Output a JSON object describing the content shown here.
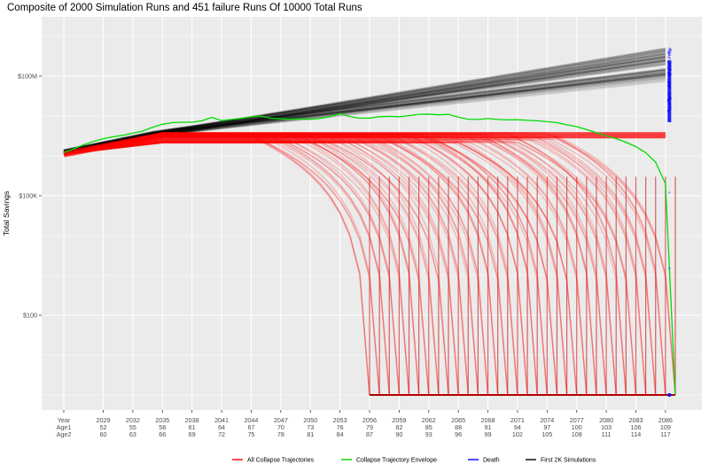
{
  "chart_data": {
    "type": "line",
    "title": "Composite of 2000 Simulation Runs and 451 failure Runs Of 10000 Total Runs",
    "ylabel": "Total Savings",
    "yscale": "log10",
    "ylim": [
      1,
      10000000000
    ],
    "y_ticks": [
      {
        "value": 100,
        "label": "$100"
      },
      {
        "value": 100000,
        "label": "$100K"
      },
      {
        "value": 100000000,
        "label": "$100M"
      }
    ],
    "x_rows": [
      {
        "label": "Year",
        "values": [
          "2029",
          "2032",
          "2035",
          "2038",
          "2041",
          "2044",
          "2047",
          "2050",
          "2053",
          "2056",
          "2059",
          "2062",
          "2065",
          "2068",
          "2071",
          "2074",
          "2077",
          "2080",
          "2083",
          "2086"
        ]
      },
      {
        "label": "Age1",
        "values": [
          "52",
          "55",
          "58",
          "61",
          "64",
          "67",
          "70",
          "73",
          "76",
          "79",
          "82",
          "85",
          "88",
          "91",
          "94",
          "97",
          "100",
          "103",
          "106",
          "109"
        ]
      },
      {
        "label": "Age2",
        "values": [
          "60",
          "63",
          "66",
          "69",
          "72",
          "75",
          "78",
          "81",
          "84",
          "87",
          "90",
          "93",
          "96",
          "99",
          "102",
          "105",
          "108",
          "111",
          "114",
          "117"
        ]
      }
    ],
    "xlim": [
      2025,
      2087
    ],
    "legend_position": "bottom",
    "series": [
      {
        "name": "All Collapse Trajectories",
        "color": "#ff0000"
      },
      {
        "name": "Collapse Trajectory Envelope",
        "color": "#00cc00"
      },
      {
        "name": "Death",
        "color": "#0000ff"
      },
      {
        "name": "First 2K Simulations",
        "color": "#000000"
      }
    ],
    "envelope": {
      "x": [
        2025,
        2026,
        2027,
        2028,
        2029,
        2030,
        2031,
        2032,
        2033,
        2034,
        2035,
        2036,
        2037,
        2038,
        2039,
        2040,
        2041,
        2042,
        2043,
        2044,
        2045,
        2046,
        2047,
        2048,
        2049,
        2050,
        2051,
        2052,
        2053,
        2054,
        2055,
        2056,
        2057,
        2058,
        2059,
        2060,
        2061,
        2062,
        2063,
        2064,
        2065,
        2066,
        2067,
        2068,
        2069,
        2070,
        2071,
        2072,
        2073,
        2074,
        2075,
        2076,
        2077,
        2078,
        2079,
        2080,
        2081,
        2082,
        2083,
        2084,
        2085,
        2086,
        2087
      ],
      "y": [
        1200000,
        1500000,
        1900000,
        2300000,
        2700000,
        3000000,
        3300000,
        3700000,
        4200000,
        5200000,
        6200000,
        6800000,
        7000000,
        7000000,
        7600000,
        9200000,
        7700000,
        8200000,
        8700000,
        9500000,
        10000000,
        8800000,
        8500000,
        8300000,
        8500000,
        8200000,
        8700000,
        9600000,
        11500000,
        9700000,
        8800000,
        8900000,
        9600000,
        9800000,
        9600000,
        10200000,
        11000000,
        11200000,
        10700000,
        11000000,
        9300000,
        8300000,
        8200000,
        8600000,
        8200000,
        8000000,
        8100000,
        7800000,
        7600000,
        7200000,
        6800000,
        6000000,
        5400000,
        4600000,
        3800000,
        3200000,
        2700000,
        2200000,
        1700000,
        1200000,
        700000,
        200000,
        1
      ]
    },
    "collapse_years": [
      2056,
      2057,
      2058,
      2059,
      2060,
      2061,
      2062,
      2063,
      2064,
      2065,
      2066,
      2067,
      2068,
      2069,
      2070,
      2071,
      2072,
      2073,
      2074,
      2075,
      2076,
      2077,
      2078,
      2079,
      2080,
      2081,
      2082,
      2083,
      2084,
      2085,
      2086,
      2087
    ],
    "collapse_floor": 1
  }
}
